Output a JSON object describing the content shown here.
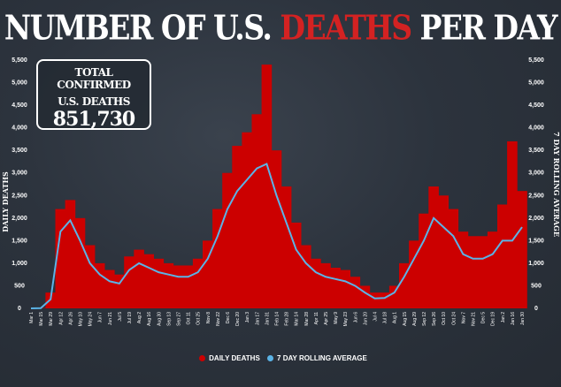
{
  "title": {
    "part1": "NUMBER OF U.S.",
    "highlight": "DEATHS",
    "part2": "PER DAY"
  },
  "total_box": {
    "line1": "TOTAL CONFIRMED",
    "line2": "U.S. DEATHS",
    "value": "851,730"
  },
  "colors": {
    "daily": "#cc0000",
    "average": "#5bb3e6",
    "background": "#2a313b",
    "highlight": "#d42222"
  },
  "chart_data": {
    "type": "bar+line",
    "title": "NUMBER OF U.S. DEATHS PER DAY",
    "ylabel": "DAILY DEATHS",
    "y2label": "7 DAY ROLLING AVERAGE",
    "ylim": [
      0,
      5500
    ],
    "yticks": [
      0,
      500,
      1000,
      1500,
      2000,
      2500,
      3000,
      3500,
      4000,
      4500,
      5000,
      5500
    ],
    "ytick_labels": [
      "0",
      "500",
      "1,000",
      "1,500",
      "2,000",
      "2,500",
      "3,000",
      "3,500",
      "4,000",
      "4,500",
      "5,000",
      "5,500"
    ],
    "x_start": "2020-03-01",
    "x_step_days": 14,
    "series": [
      {
        "name": "DAILY DEATHS",
        "type": "bar",
        "values": [
          0,
          10,
          350,
          2200,
          2400,
          2000,
          1400,
          1000,
          850,
          750,
          1150,
          1300,
          1200,
          1100,
          1000,
          950,
          950,
          1100,
          1500,
          2200,
          3000,
          3600,
          3900,
          4300,
          5400,
          3500,
          2700,
          1900,
          1400,
          1100,
          1000,
          900,
          850,
          700,
          500,
          350,
          350,
          500,
          1000,
          1500,
          2100,
          2700,
          2500,
          2200,
          1700,
          1600,
          1600,
          1700,
          2300,
          3700,
          2600
        ]
      },
      {
        "name": "7 DAY ROLLING AVERAGE",
        "type": "line",
        "values": [
          0,
          5,
          200,
          1700,
          1950,
          1500,
          1000,
          750,
          600,
          550,
          850,
          1000,
          900,
          800,
          750,
          700,
          700,
          800,
          1100,
          1600,
          2200,
          2600,
          2850,
          3100,
          3200,
          2500,
          1900,
          1300,
          1000,
          800,
          700,
          650,
          600,
          500,
          350,
          220,
          230,
          350,
          700,
          1100,
          1500,
          2000,
          1800,
          1600,
          1200,
          1100,
          1100,
          1200,
          1500,
          1500,
          1800
        ]
      }
    ],
    "legend": "bottom-center",
    "grid": false
  }
}
